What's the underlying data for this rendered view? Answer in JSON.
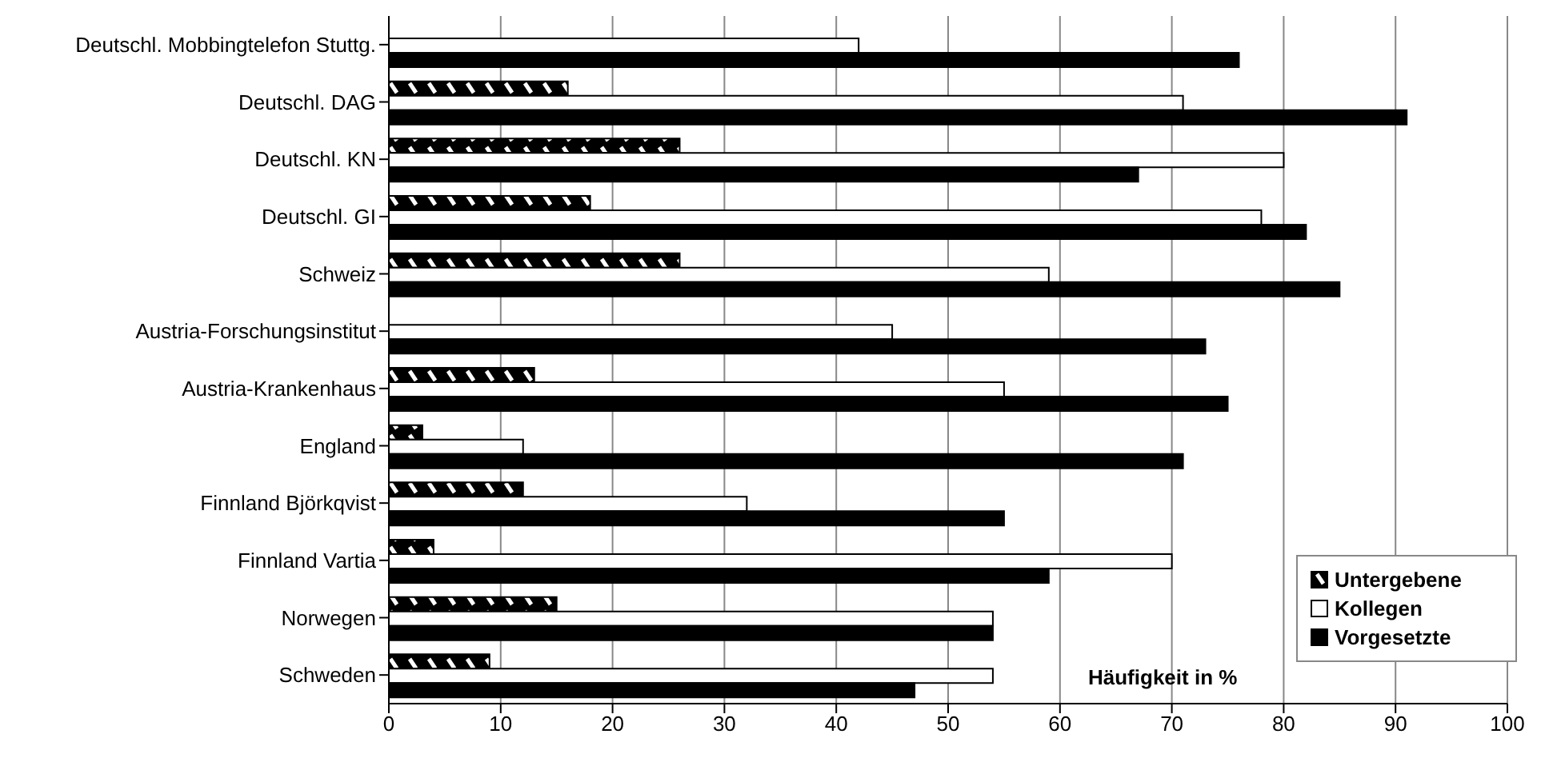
{
  "chart_data": {
    "type": "bar",
    "orientation": "horizontal",
    "xlabel": "Häufigkeit in %",
    "categories": [
      "Deutschl. Mobbingtelefon Stuttg.",
      "Deutschl. DAG",
      "Deutschl. KN",
      "Deutschl. GI",
      "Schweiz",
      "Austria-Forschungsinstitut",
      "Austria-Krankenhaus",
      "England",
      "Finnland Björkqvist",
      "Finnland Vartia",
      "Norwegen",
      "Schweden"
    ],
    "series": [
      {
        "name": "Untergebene",
        "color": "#000000",
        "values": [
          null,
          16,
          26,
          18,
          26,
          null,
          13,
          3,
          12,
          4,
          15,
          9
        ]
      },
      {
        "name": "Kollegen",
        "color": "#ffffff",
        "values": [
          42,
          71,
          80,
          78,
          59,
          45,
          55,
          12,
          32,
          70,
          54,
          54
        ]
      },
      {
        "name": "Vorgesetzte",
        "color": "#000000",
        "values": [
          76,
          91,
          67,
          82,
          85,
          73,
          75,
          71,
          55,
          59,
          54,
          47
        ]
      }
    ],
    "xlim": [
      0,
      100
    ],
    "xticks": [
      0,
      10,
      20,
      30,
      40,
      50,
      60,
      70,
      80,
      90,
      100
    ],
    "grid": "x",
    "legend": "bottom right"
  }
}
